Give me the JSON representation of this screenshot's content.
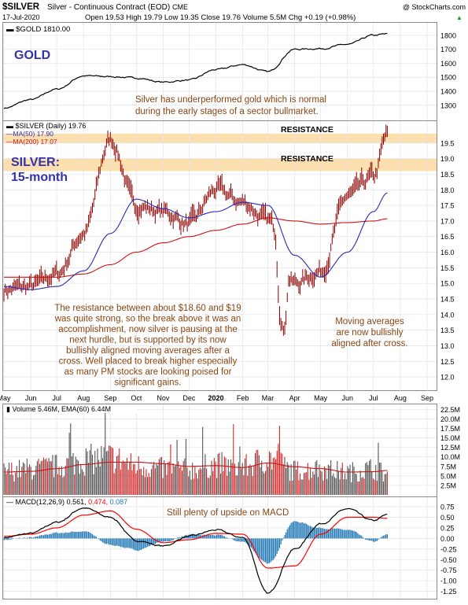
{
  "header": {
    "symbol": "$SILVER",
    "description": "Silver - Continuous Contract (EOD)",
    "exchange": "CME",
    "date": "17-Jul-2020",
    "ohlc": "Open 19.53  High 19.79  Low 19.35  Close 19.76  Volume 5.5M  Chg +0.19 (+0.98%)",
    "chg_arrow": "▲",
    "copyright": "@ StockCharts.com"
  },
  "colors": {
    "price": "#8b0000",
    "ma50": "#2a2ab8",
    "ma200": "#cc1111",
    "annotation": "#8b4513",
    "label_blue": "#3333aa",
    "resistance_fill": "#fbdfae",
    "macd_line": "#000000",
    "signal_line": "#ff0000",
    "histogram": "#1f77b4",
    "vol_up": "#555555",
    "vol_down": "#d62728"
  },
  "gold_panel": {
    "legend": "$GOLD 1810.00",
    "big_label": "GOLD",
    "annotation_line1": "Silver has underperformed gold which is normal",
    "annotation_line2": "during the early stages of a sector bullmarket.",
    "y_ticks": [
      "1800",
      "1700",
      "1600",
      "1500",
      "1400",
      "1300"
    ]
  },
  "price_panel": {
    "legend_main": "$SILVER (Daily) 19.76",
    "legend_ma50": "MA(50) 17.90",
    "legend_ma200": "MA(200) 17.07",
    "big_label_1": "SILVER:",
    "big_label_2": "15-month",
    "resistance_label_1": "RESISTANCE",
    "resistance_label_2": "RESISTANCE",
    "left_note": [
      "The resistance between about $18.60 and $19",
      "was quite strong, so the break above it was an",
      "accomplishment, now silver is pausing at the",
      "next hurdle, but is supported by its now",
      "bullishly aligned moving averages after a",
      "cross. Well placed to break higher especially",
      "as many PM stocks are looking poised for",
      "significant gains."
    ],
    "right_note": [
      "Moving averages",
      "are now bullishly",
      "aligned after cross."
    ],
    "y_ticks": [
      "19.5",
      "19.0",
      "18.5",
      "18.0",
      "17.5",
      "17.0",
      "16.5",
      "16.0",
      "15.5",
      "15.0",
      "14.5",
      "14.0",
      "13.5",
      "13.0",
      "12.5",
      "12.0"
    ]
  },
  "month_axis": [
    "May",
    "Jun",
    "Jul",
    "Aug",
    "Sep",
    "Oct",
    "Nov",
    "Dec",
    "2020",
    "Feb",
    "Mar",
    "Apr",
    "May",
    "Jun",
    "Jul",
    "Aug",
    "Sep"
  ],
  "volume_panel": {
    "legend": "Volume 5.46M, EMA(60) 6.44M",
    "y_ticks": [
      "22.5M",
      "20.0M",
      "17.5M",
      "15.0M",
      "12.5M",
      "10.0M",
      "7.5M",
      "5.0M",
      "2.5M"
    ]
  },
  "macd_panel": {
    "legend_prefix": "MACD(12,26,9)",
    "legend_macd": "0.561,",
    "legend_signal": "0.474,",
    "legend_hist": "0.087",
    "note": "Still plenty of upside on MACD",
    "y_ticks": [
      "0.75",
      "0.50",
      "0.25",
      "0.00",
      "-0.25",
      "-0.50",
      "-0.75",
      "-1.00",
      "-1.25"
    ]
  },
  "chart_data": [
    {
      "type": "line",
      "title": "$GOLD",
      "x": [
        "2019-05",
        "2019-06",
        "2019-07",
        "2019-08",
        "2019-09",
        "2019-10",
        "2019-11",
        "2019-12",
        "2020-01",
        "2020-02",
        "2020-03",
        "2020-04",
        "2020-05",
        "2020-06",
        "2020-07",
        "2020-07-17"
      ],
      "series": [
        {
          "name": "$GOLD",
          "values": [
            1280,
            1340,
            1415,
            1510,
            1505,
            1495,
            1465,
            1480,
            1555,
            1590,
            1540,
            1700,
            1705,
            1735,
            1800,
            1810
          ]
        }
      ],
      "ylim": [
        1220,
        1850
      ]
    },
    {
      "type": "line",
      "title": "$SILVER (Daily)",
      "x": [
        "2019-05",
        "2019-06",
        "2019-07",
        "2019-08",
        "2019-09",
        "2019-10",
        "2019-11",
        "2019-12",
        "2020-01",
        "2020-02",
        "2020-03",
        "2020-04",
        "2020-05",
        "2020-06",
        "2020-07",
        "2020-07-17"
      ],
      "series": [
        {
          "name": "$SILVER",
          "values": [
            14.8,
            14.9,
            15.3,
            16.6,
            19.6,
            17.5,
            17.3,
            16.9,
            18.0,
            17.6,
            17.0,
            15.0,
            15.4,
            17.8,
            18.4,
            19.76
          ]
        },
        {
          "name": "MA(50)",
          "values": [
            14.9,
            14.8,
            14.9,
            15.4,
            16.6,
            17.7,
            17.4,
            17.1,
            17.3,
            17.6,
            17.5,
            15.9,
            15.2,
            16.0,
            17.3,
            17.9
          ]
        },
        {
          "name": "MA(200)",
          "values": [
            15.2,
            15.2,
            15.2,
            15.3,
            15.6,
            16.0,
            16.3,
            16.5,
            16.7,
            16.9,
            17.1,
            17.0,
            16.9,
            16.95,
            17.0,
            17.07
          ]
        }
      ],
      "ylim": [
        11.7,
        20.1
      ],
      "annotations": [
        "RESISTANCE 19.5–19.8",
        "RESISTANCE 18.6–19.0"
      ]
    },
    {
      "type": "bar",
      "title": "Volume",
      "x": [
        "2019-05",
        "2019-06",
        "2019-07",
        "2019-08",
        "2019-09",
        "2019-10",
        "2019-11",
        "2019-12",
        "2020-01",
        "2020-02",
        "2020-03",
        "2020-04",
        "2020-05",
        "2020-06",
        "2020-07",
        "2020-07-17"
      ],
      "series": [
        {
          "name": "Volume",
          "values": [
            6.2,
            6.8,
            7.5,
            9.2,
            9.8,
            7.6,
            6.9,
            6.7,
            7.9,
            7.3,
            9.6,
            6.4,
            6.8,
            6.0,
            6.9,
            5.46
          ]
        },
        {
          "name": "EMA(60)",
          "values": [
            6.0,
            6.2,
            6.9,
            8.0,
            8.6,
            8.6,
            8.2,
            7.5,
            7.7,
            7.2,
            8.4,
            7.4,
            6.9,
            6.0,
            6.1,
            6.44
          ]
        }
      ],
      "ylim": [
        0,
        23
      ]
    },
    {
      "type": "line",
      "title": "MACD(12,26,9)",
      "x": [
        "2019-05",
        "2019-06",
        "2019-07",
        "2019-08",
        "2019-09",
        "2019-10",
        "2019-11",
        "2019-12",
        "2020-01",
        "2020-02",
        "2020-03",
        "2020-04",
        "2020-05",
        "2020-06",
        "2020-07",
        "2020-07-17"
      ],
      "series": [
        {
          "name": "MACD",
          "values": [
            0.02,
            0.12,
            0.38,
            0.72,
            0.5,
            -0.05,
            -0.18,
            0.05,
            0.2,
            0.02,
            -1.3,
            -0.25,
            0.35,
            0.7,
            0.42,
            0.561
          ]
        },
        {
          "name": "Signal",
          "values": [
            0.05,
            0.1,
            0.25,
            0.55,
            0.65,
            0.22,
            -0.1,
            -0.03,
            0.12,
            0.1,
            -0.7,
            -0.65,
            0.1,
            0.5,
            0.5,
            0.474
          ]
        },
        {
          "name": "Histogram",
          "values": [
            -0.03,
            0.02,
            0.13,
            0.17,
            -0.15,
            -0.27,
            -0.08,
            0.08,
            0.08,
            -0.08,
            -0.6,
            0.4,
            0.25,
            0.2,
            -0.08,
            0.087
          ]
        }
      ],
      "ylim": [
        -1.35,
        0.9
      ]
    }
  ]
}
